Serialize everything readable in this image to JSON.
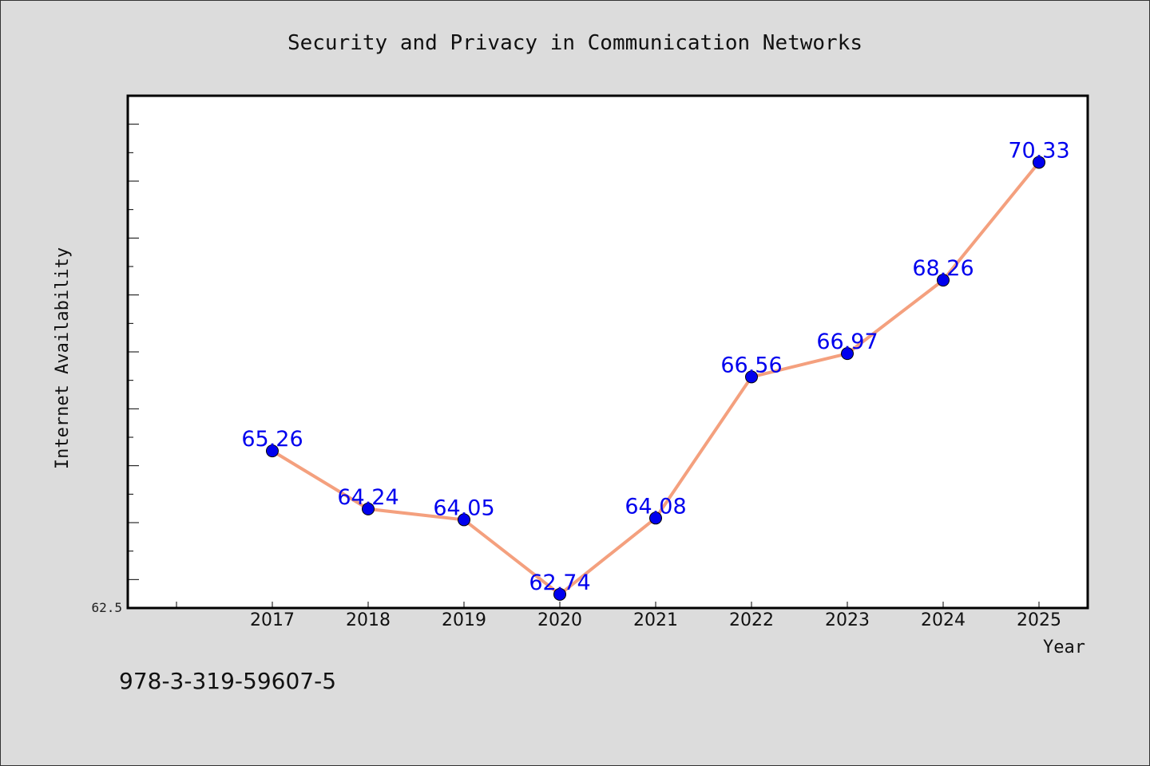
{
  "chart_data": {
    "type": "line",
    "title": "Security and Privacy in Communication Networks",
    "xlabel": "Year",
    "ylabel": "Internet Availability",
    "footnote": "978-3-319-59607-5",
    "categories": [
      "2017",
      "2018",
      "2019",
      "2020",
      "2021",
      "2022",
      "2023",
      "2024",
      "2025"
    ],
    "series": [
      {
        "name": "",
        "values": [
          65.26,
          64.24,
          64.05,
          62.74,
          64.08,
          66.56,
          66.97,
          68.26,
          70.33
        ],
        "labels": [
          "65.26",
          "64.24",
          "64.05",
          "62.74",
          "64.08",
          "66.56",
          "66.97",
          "68.26",
          "70.33"
        ]
      }
    ],
    "ytick_labels": [
      "62.5"
    ],
    "ylim": [
      62.5,
      71.5
    ],
    "grid": false,
    "line_color": "#f4a07e",
    "marker_color": "#0000ee",
    "label_color": "#0000ee"
  }
}
